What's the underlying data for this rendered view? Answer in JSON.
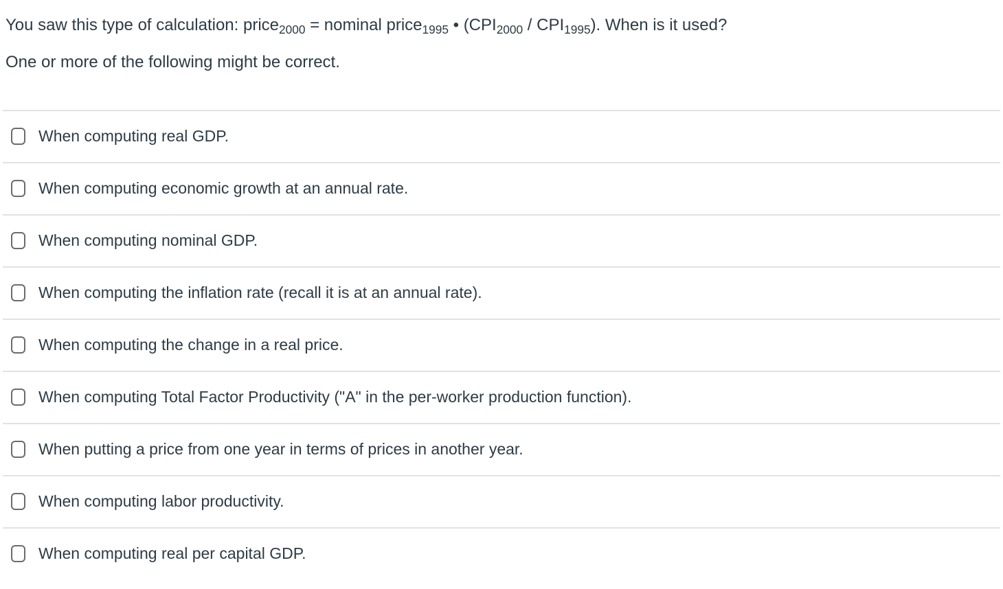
{
  "question": {
    "formula_segments": [
      {
        "text": "You saw this type of calculation: price",
        "sub": false
      },
      {
        "text": "2000",
        "sub": true
      },
      {
        "text": " = nominal price",
        "sub": false
      },
      {
        "text": "1995",
        "sub": true
      },
      {
        "text": " • (CPI",
        "sub": false
      },
      {
        "text": "2000",
        "sub": true
      },
      {
        "text": " / CPI",
        "sub": false
      },
      {
        "text": "1995",
        "sub": true
      },
      {
        "text": "). When is it used?",
        "sub": false
      }
    ],
    "line2": "One or more of the following might be correct."
  },
  "options": [
    {
      "label": "When computing real GDP.",
      "checked": false
    },
    {
      "label": "When computing economic growth at an annual rate.",
      "checked": false
    },
    {
      "label": "When computing nominal GDP.",
      "checked": false
    },
    {
      "label": "When computing the inflation rate (recall it is at an annual rate).",
      "checked": false
    },
    {
      "label": "When computing the change in a real price.",
      "checked": false
    },
    {
      "label": "When computing Total Factor Productivity (\"A\" in the per-worker production function).",
      "checked": false
    },
    {
      "label": "When putting a price from one year in terms of prices in another year.",
      "checked": false
    },
    {
      "label": "When computing labor productivity.",
      "checked": false
    },
    {
      "label": "When computing real per capital GDP.",
      "checked": false
    }
  ],
  "colors": {
    "text": "#2d3b45",
    "divider": "#e2e2e4",
    "checkbox_border": "#6b6b6b",
    "background": "#ffffff"
  }
}
